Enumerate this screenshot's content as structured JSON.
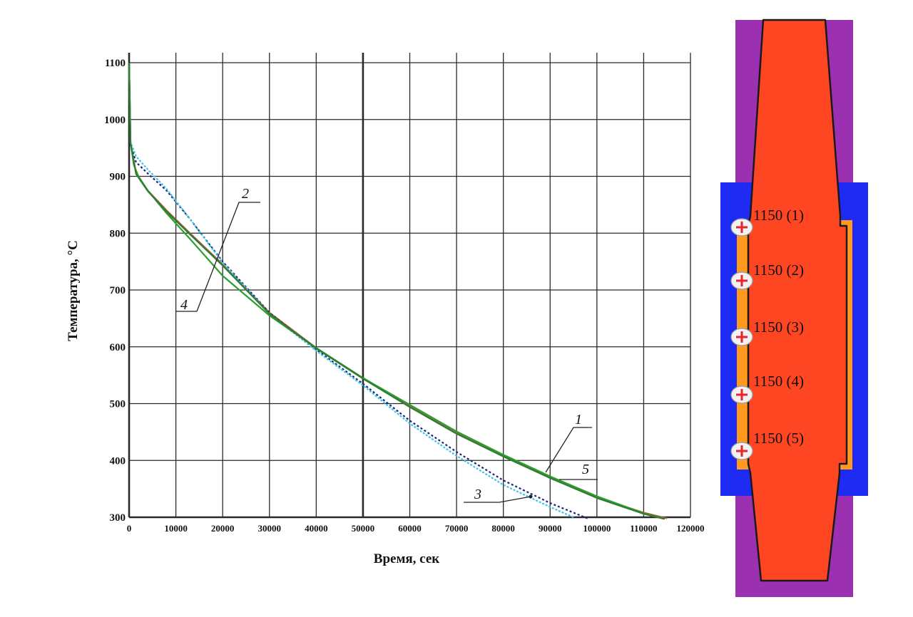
{
  "chart_data": {
    "type": "line",
    "xlabel": "Время, сек",
    "ylabel": "Температура, °С",
    "xlim": [
      0,
      120000
    ],
    "ylim": [
      300,
      1100
    ],
    "x_ticks": [
      0,
      10000,
      20000,
      30000,
      40000,
      50000,
      60000,
      70000,
      80000,
      90000,
      100000,
      110000,
      120000
    ],
    "y_ticks": [
      300,
      400,
      500,
      600,
      700,
      800,
      900,
      1000,
      1100
    ],
    "grid": true,
    "series": [
      {
        "label": "1",
        "color": "#b05a3a",
        "dash": "",
        "x": [
          0,
          300,
          1500,
          4000,
          8000,
          13000,
          20000,
          30000,
          40000,
          50000,
          60000,
          70000,
          80000,
          90000,
          100000,
          110000,
          115000
        ],
        "y": [
          1100,
          960,
          905,
          875,
          840,
          800,
          745,
          660,
          598,
          545,
          495,
          448,
          408,
          370,
          335,
          308,
          298
        ]
      },
      {
        "label": "2",
        "color": "#1a237e",
        "dash": "3 3",
        "x": [
          0,
          300,
          1500,
          4000,
          8000,
          13000,
          20000,
          30000,
          40000,
          50000,
          60000,
          70000,
          80000,
          90000,
          98000
        ],
        "y": [
          1100,
          955,
          925,
          905,
          875,
          825,
          750,
          660,
          595,
          535,
          470,
          415,
          365,
          325,
          298
        ]
      },
      {
        "label": "3",
        "color": "#40c4e0",
        "dash": "3 2",
        "x": [
          0,
          300,
          1500,
          4000,
          8000,
          13000,
          20000,
          30000,
          40000,
          50000,
          60000,
          70000,
          80000,
          90000,
          95000
        ],
        "y": [
          1100,
          960,
          935,
          912,
          878,
          825,
          748,
          658,
          593,
          532,
          465,
          408,
          357,
          318,
          300
        ]
      },
      {
        "label": "4",
        "color": "#2e9e2e",
        "dash": "",
        "x": [
          0,
          300,
          1000,
          2000,
          4000,
          8000,
          13000,
          20000,
          30000,
          40000,
          50000,
          60000,
          70000,
          80000,
          90000,
          100000,
          110000,
          114000
        ],
        "y": [
          1100,
          960,
          920,
          900,
          875,
          835,
          790,
          725,
          655,
          598,
          545,
          498,
          451,
          410,
          372,
          337,
          307,
          298
        ]
      },
      {
        "label": "5",
        "color": "#2e7d32",
        "dash": "",
        "x": [
          0,
          300,
          1500,
          4000,
          8000,
          13000,
          20000,
          30000,
          40000,
          50000,
          60000,
          70000,
          80000,
          90000,
          100000,
          110000,
          114500
        ],
        "y": [
          1100,
          958,
          904,
          874,
          838,
          798,
          743,
          658,
          597,
          544,
          494,
          447,
          407,
          369,
          334,
          306,
          297
        ]
      }
    ]
  },
  "diagram": {
    "sensors": [
      "1150 (1)",
      "1150 (2)",
      "1150 (3)",
      "1150 (4)",
      "1150 (5)"
    ],
    "colors": {
      "outer": "#9b30b0",
      "jacket": "#1f2bf2",
      "core": "#ff4622",
      "layer": "#ff9a1f"
    }
  }
}
